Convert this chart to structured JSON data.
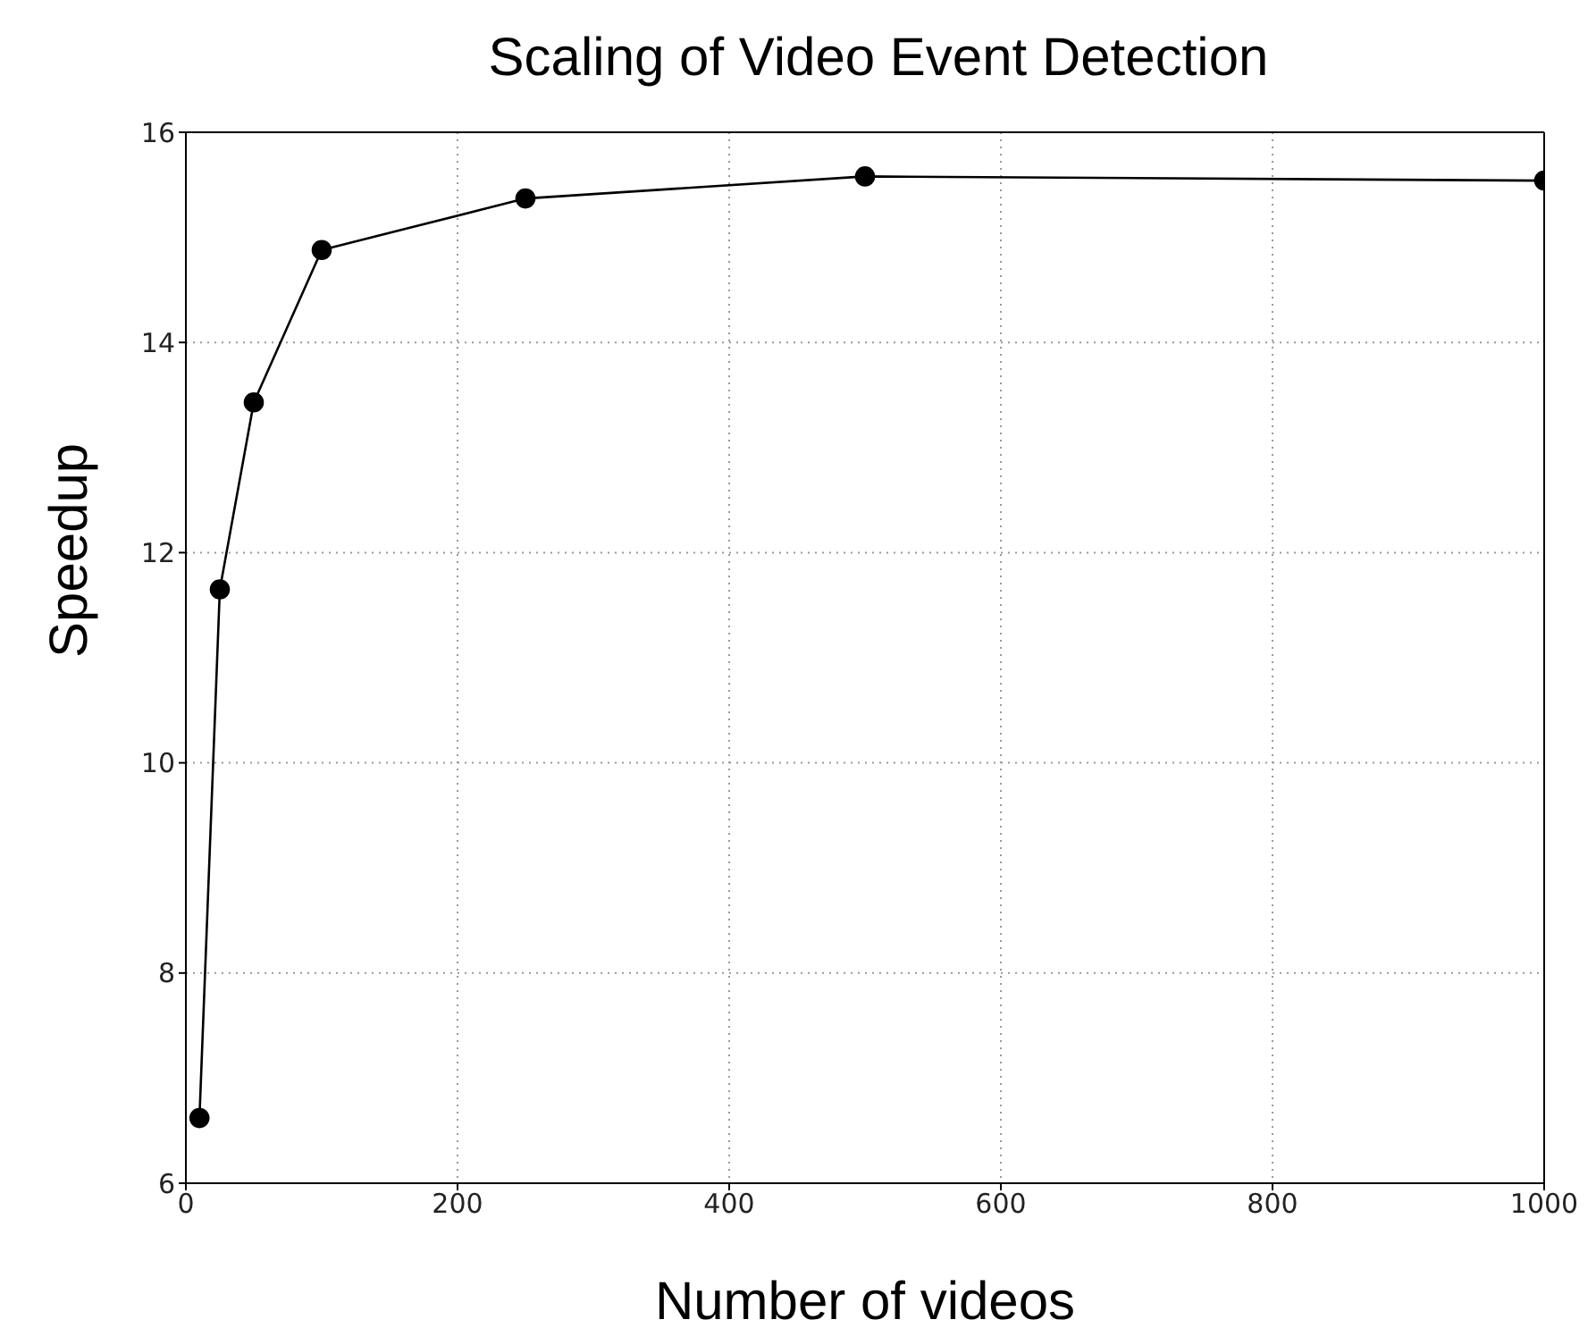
{
  "chart_data": {
    "type": "line",
    "title": "Scaling of Video Event Detection",
    "xlabel": "Number of videos",
    "ylabel": "Speedup",
    "x": [
      10,
      25,
      50,
      100,
      250,
      500,
      1000
    ],
    "series": [
      {
        "color": "#000000",
        "values": [
          6.62,
          11.65,
          13.43,
          14.88,
          15.37,
          15.58,
          15.54
        ]
      }
    ],
    "xlim": [
      0,
      1000
    ],
    "xticks": [
      0,
      200,
      400,
      600,
      800,
      1000
    ],
    "ylim": [
      6,
      16
    ],
    "yticks": [
      6,
      8,
      10,
      12,
      14,
      16
    ],
    "grid": true,
    "legend": false,
    "marker": "circle",
    "line_style": "solid"
  }
}
